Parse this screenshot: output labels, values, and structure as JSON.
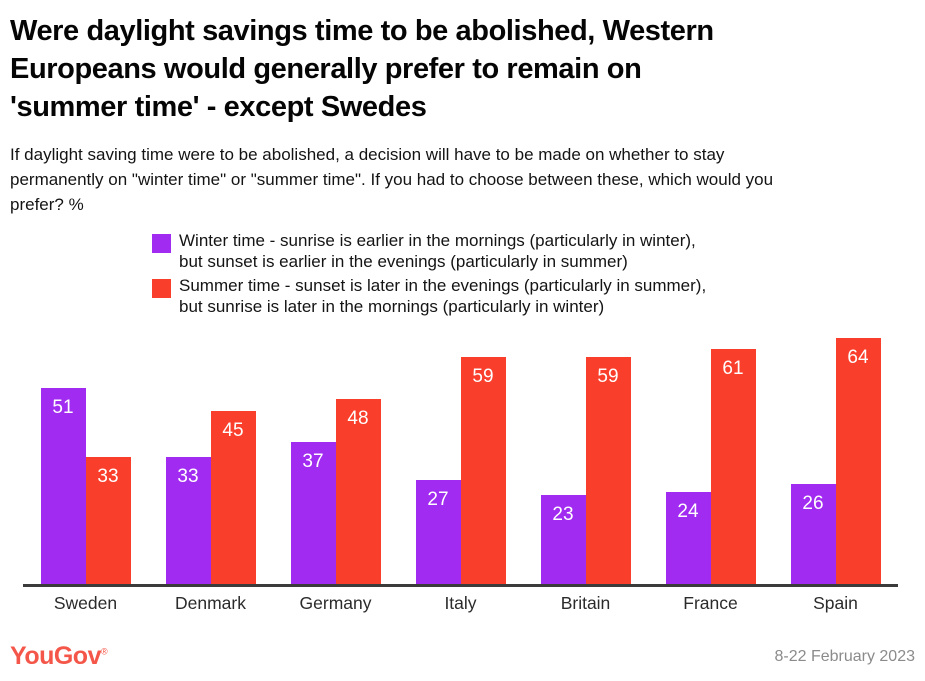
{
  "header": {
    "title_lines": [
      "Were daylight savings time to be abolished, Western",
      "Europeans would generally prefer to remain on",
      "'summer time' - except Swedes"
    ],
    "subtitle_lines": [
      "If daylight saving time were to be abolished, a decision will have to be made on whether to stay",
      "permanently on \"winter time\" or \"summer time\". If you had to choose between these, which would you",
      "prefer? %"
    ]
  },
  "legend": {
    "items": [
      {
        "name": "Winter time",
        "color": "#A12BF0",
        "label_lines": [
          "Winter time - sunrise is earlier in the mornings (particularly in winter),",
          "but sunset is earlier in the evenings (particularly in summer)"
        ]
      },
      {
        "name": "Summer time",
        "color": "#F93E2B",
        "label_lines": [
          "Summer time - sunset is later in the evenings (particularly in summer),",
          "but sunrise is later in the mornings (particularly in winter)"
        ]
      }
    ]
  },
  "chart_data": {
    "type": "bar",
    "title": "Were daylight savings time to be abolished, Western Europeans would generally prefer to remain on 'summer time' - except Swedes",
    "subtitle": "If daylight saving time were to be abolished, a decision will have to be made on whether to stay permanently on \"winter time\" or \"summer time\". If you had to choose between these, which would you prefer? %",
    "categories": [
      "Sweden",
      "Denmark",
      "Germany",
      "Italy",
      "Britain",
      "France",
      "Spain"
    ],
    "series": [
      {
        "name": "Winter time",
        "color": "#A12BF0",
        "values": [
          51,
          33,
          37,
          27,
          23,
          24,
          26
        ]
      },
      {
        "name": "Summer time",
        "color": "#F93E2B",
        "values": [
          33,
          45,
          48,
          59,
          59,
          61,
          64
        ]
      }
    ],
    "xlabel": "",
    "ylabel": "%",
    "ylim": [
      0,
      64
    ],
    "value_labels": true,
    "grid": false,
    "legend_position": "top",
    "axis_color": "#3b3b3b"
  },
  "footer": {
    "logo_text": "YouGov",
    "logo_registered": "®",
    "brand_color": "#F4574A",
    "date_range": "8-22 February 2023"
  }
}
